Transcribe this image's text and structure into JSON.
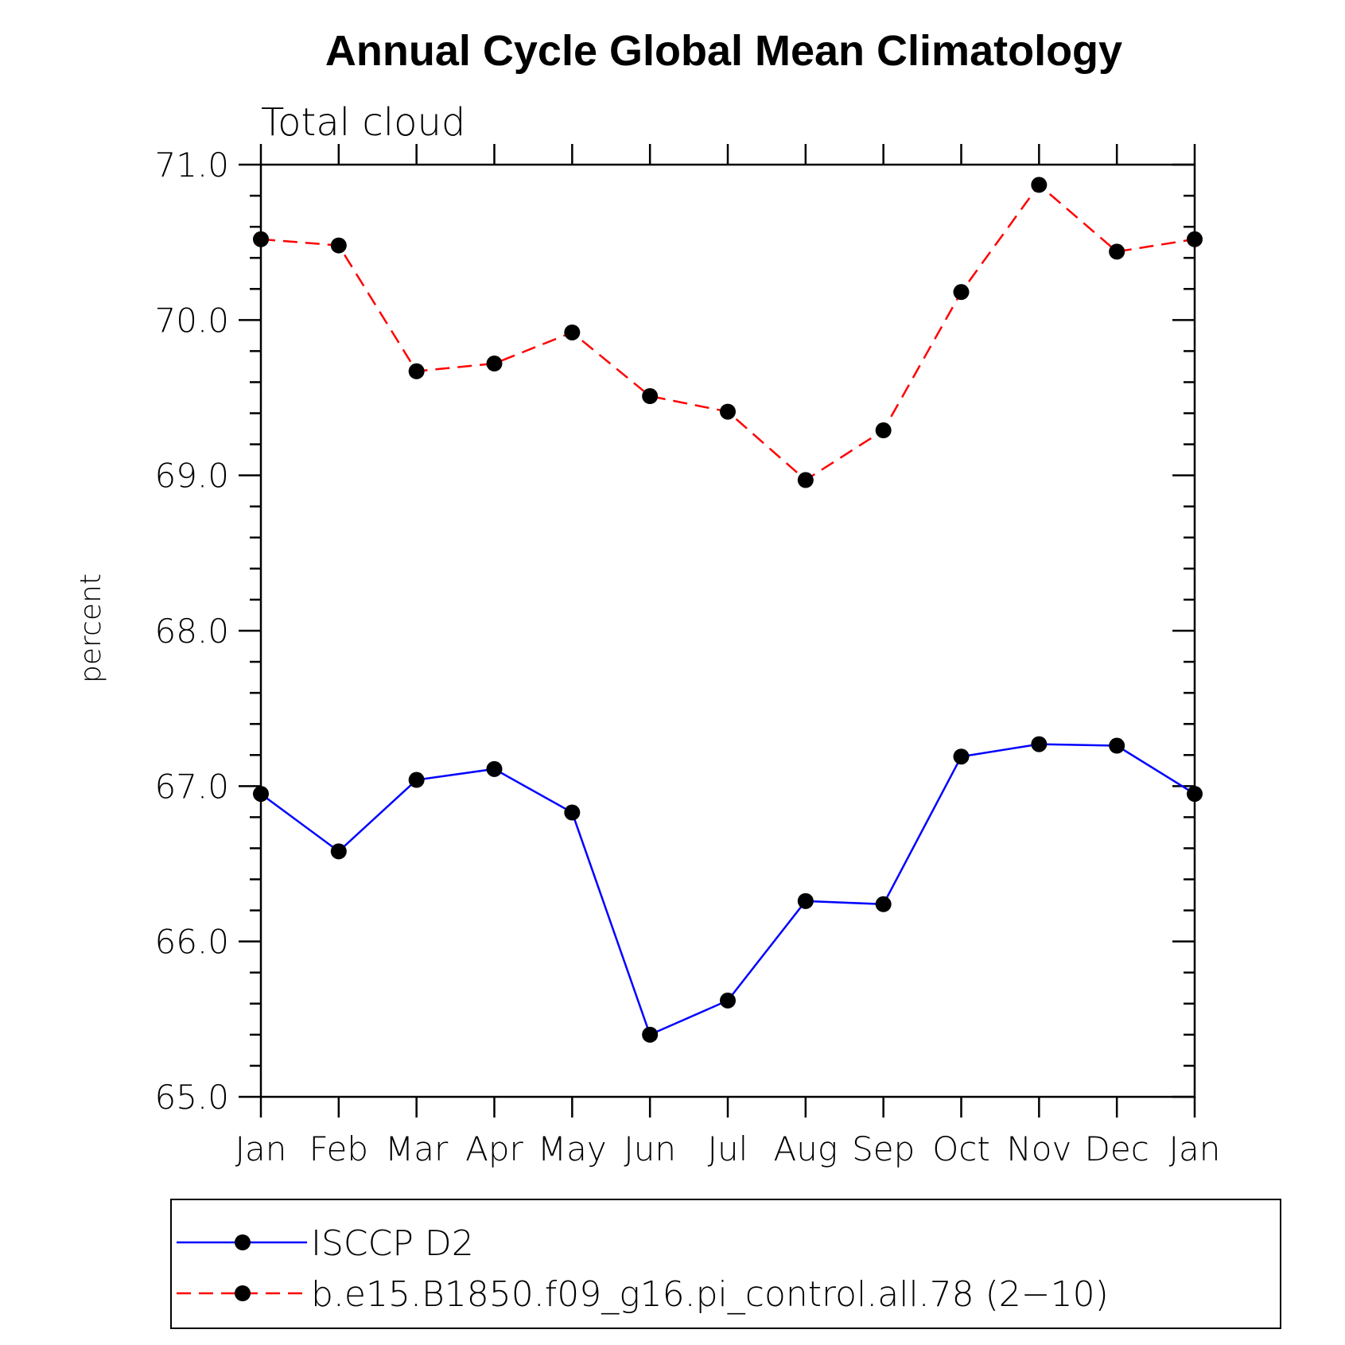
{
  "chart_data": {
    "type": "line",
    "title": "Annual Cycle Global Mean Climatology",
    "subtitle": "Total cloud",
    "xlabel": "",
    "ylabel": "percent",
    "categories": [
      "Jan",
      "Feb",
      "Mar",
      "Apr",
      "May",
      "Jun",
      "Jul",
      "Aug",
      "Sep",
      "Oct",
      "Nov",
      "Dec",
      "Jan"
    ],
    "ylim": [
      65.0,
      71.0
    ],
    "yticks": [
      "65.0",
      "66.0",
      "67.0",
      "68.0",
      "69.0",
      "70.0",
      "71.0"
    ],
    "ytick_values": [
      65.0,
      66.0,
      67.0,
      68.0,
      69.0,
      70.0,
      71.0
    ],
    "y_minor_step": 0.2,
    "grid": false,
    "legend_position": "bottom",
    "series": [
      {
        "name": "ISCCP D2",
        "color": "#0000ff",
        "dash": "solid",
        "marker": "filled-circle",
        "values": [
          66.95,
          66.58,
          67.04,
          67.11,
          66.83,
          65.4,
          65.62,
          66.26,
          66.24,
          67.19,
          67.27,
          67.26,
          66.95
        ]
      },
      {
        "name": "b.e15.B1850.f09_g16.pi_control.all.78 (2−10)",
        "color": "#ff0000",
        "dash": "dashed",
        "marker": "filled-circle",
        "values": [
          70.52,
          70.48,
          69.67,
          69.72,
          69.92,
          69.51,
          69.41,
          68.97,
          69.29,
          70.18,
          70.87,
          70.44,
          70.52
        ]
      }
    ],
    "marker_color": "#000000",
    "axis_color": "#000000"
  }
}
